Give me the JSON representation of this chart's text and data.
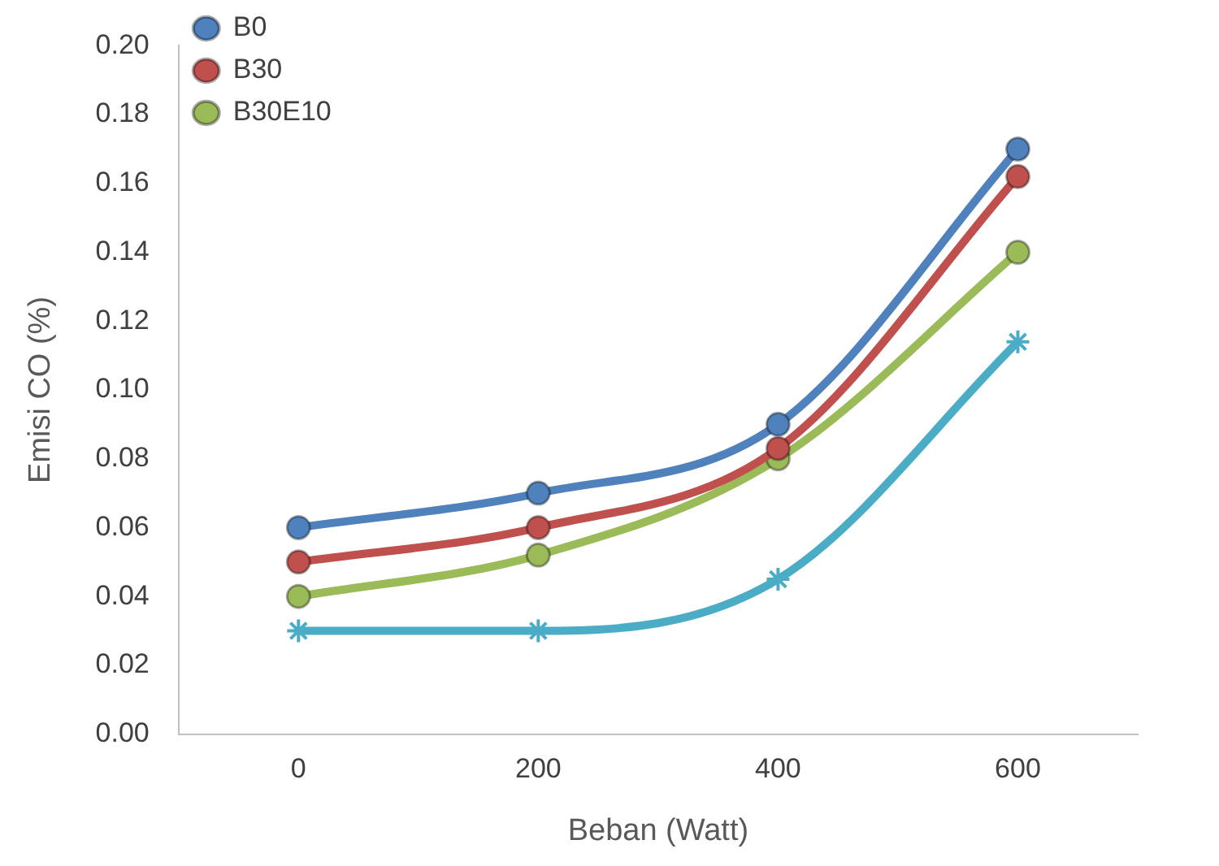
{
  "chart_data": {
    "type": "line",
    "xlabel": "Beban (Watt)",
    "ylabel": "Emisi CO (%)",
    "categories": [
      "0",
      "200",
      "400",
      "600"
    ],
    "ylim": [
      0,
      0.2
    ],
    "yticks": [
      {
        "value": 0,
        "label": "0.00"
      },
      {
        "value": 0.02,
        "label": "0.02"
      },
      {
        "value": 0.04,
        "label": "0.04"
      },
      {
        "value": 0.06,
        "label": "0.06"
      },
      {
        "value": 0.08,
        "label": "0.08"
      },
      {
        "value": 0.1,
        "label": "0.10"
      },
      {
        "value": 0.12,
        "label": "0.12"
      },
      {
        "value": 0.14,
        "label": "0.14"
      },
      {
        "value": 0.16,
        "label": "0.16"
      },
      {
        "value": 0.18,
        "label": "0.18"
      },
      {
        "value": 0.2,
        "label": "0.20"
      }
    ],
    "grid": false,
    "legend": "top left",
    "line_style": "solid",
    "series": [
      {
        "name": "B0",
        "color": "#4f81bd",
        "values": [
          0.06,
          0.07,
          0.09,
          0.17
        ],
        "marker": "circle"
      },
      {
        "name": "B30",
        "color": "#c0504d",
        "values": [
          0.05,
          0.06,
          0.083,
          0.162
        ],
        "marker": "circle"
      },
      {
        "name": "B30E10",
        "color": "#9bbb59",
        "values": [
          0.04,
          0.052,
          0.08,
          0.14
        ],
        "marker": "circle"
      },
      {
        "color": "#4bacc6",
        "values": [
          0.03,
          0.03,
          0.045,
          0.114
        ],
        "marker": "cross"
      }
    ]
  }
}
